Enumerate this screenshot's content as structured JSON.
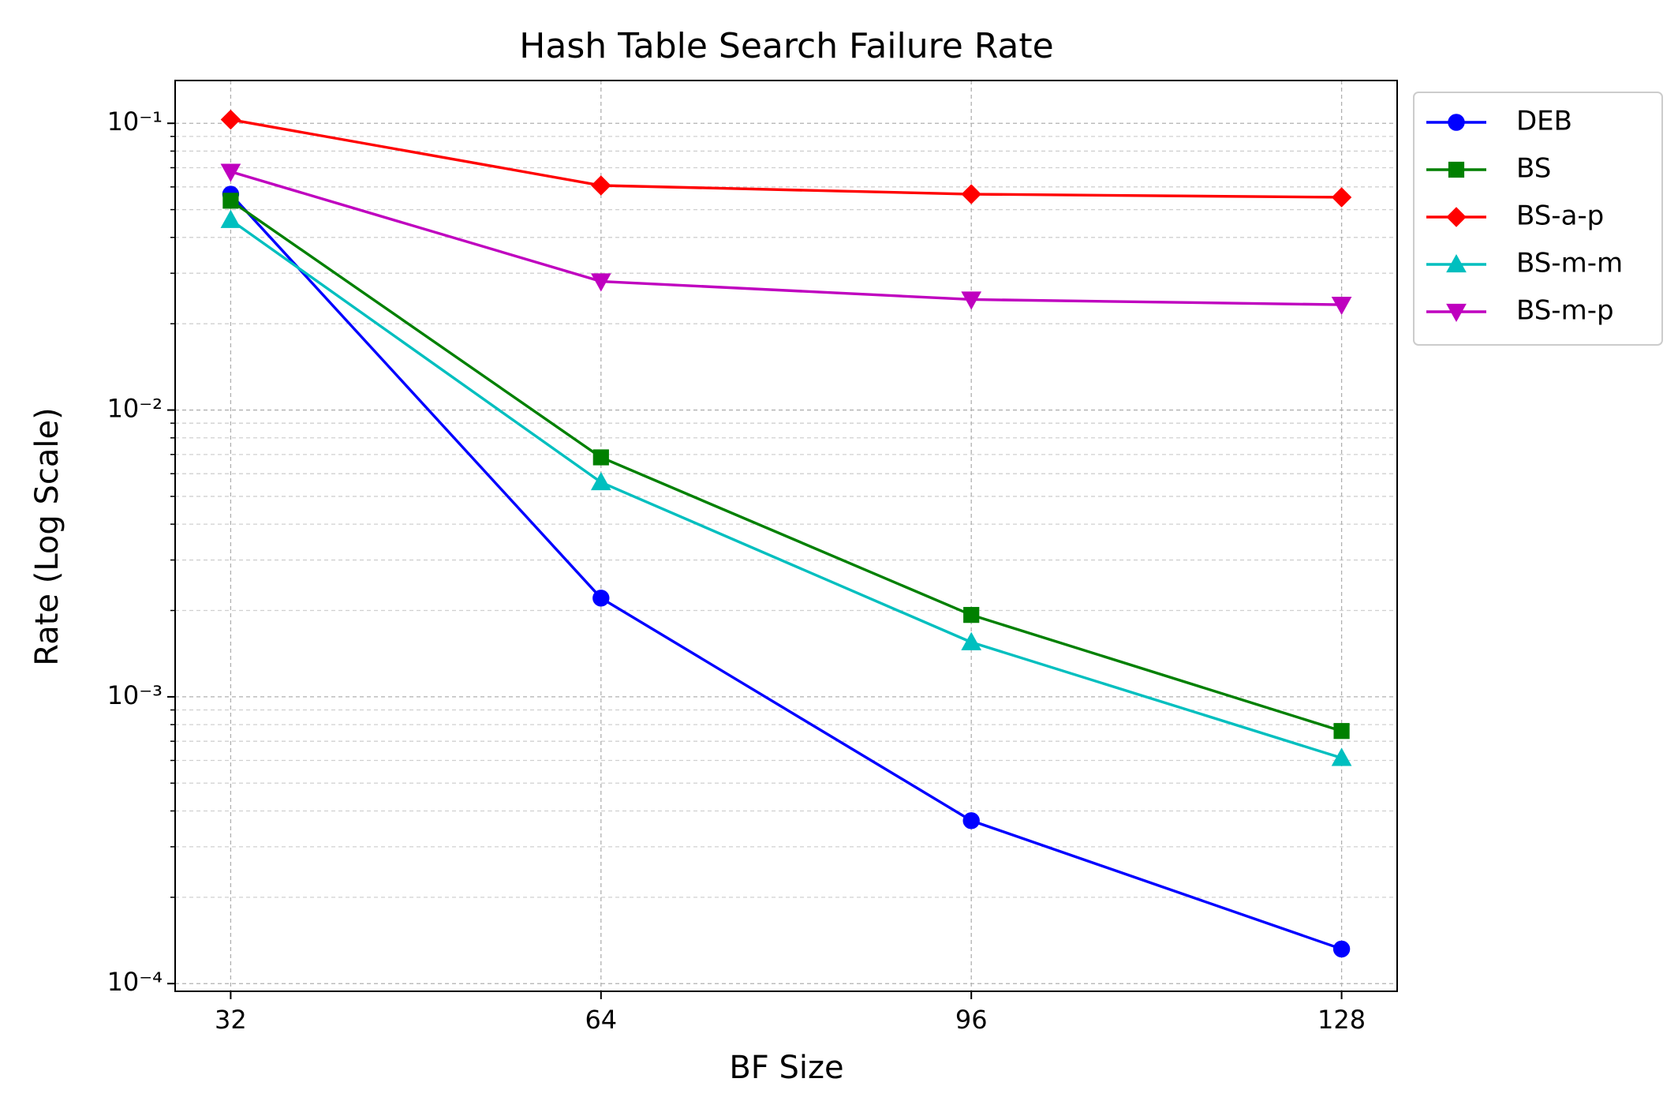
{
  "chart_data": {
    "type": "line",
    "title": "Hash Table Search Failure Rate",
    "x_label": "BF Size",
    "y_label": "Rate (Log Scale)",
    "x": [
      32,
      64,
      96,
      128
    ],
    "xlim": [
      27.2,
      132.8
    ],
    "xticks": [
      32,
      64,
      96,
      128
    ],
    "ylim": [
      9.4e-05,
      0.141
    ],
    "yscale": "log",
    "yticks": [
      {
        "value": 0.1,
        "label": "10⁻¹"
      },
      {
        "value": 0.01,
        "label": "10⁻²"
      },
      {
        "value": 0.001,
        "label": "10⁻³"
      },
      {
        "value": 0.0001,
        "label": "10⁻⁴"
      }
    ],
    "yminor": [
      0.0002,
      0.0003,
      0.0004,
      0.0005,
      0.0006,
      0.0007,
      0.0008,
      0.0009,
      0.002,
      0.003,
      0.004,
      0.005,
      0.006,
      0.007,
      0.008,
      0.009,
      0.02,
      0.03,
      0.04,
      0.05,
      0.06,
      0.07,
      0.08,
      0.09
    ],
    "grid": true,
    "legend": "outside-right",
    "series": [
      {
        "name": "DEB",
        "color": "#0000ff",
        "marker": "circle",
        "values": [
          0.0566,
          0.00221,
          0.00037,
          0.000132
        ]
      },
      {
        "name": "BS",
        "color": "#008000",
        "marker": "square",
        "values": [
          0.0537,
          0.00684,
          0.00193,
          0.00076
        ]
      },
      {
        "name": "BS-a-p",
        "color": "#ff0000",
        "marker": "diamond",
        "values": [
          0.103,
          0.0607,
          0.0566,
          0.0552
        ]
      },
      {
        "name": "BS-m-m",
        "color": "#00bfbf",
        "marker": "triangle-up",
        "values": [
          0.046,
          0.0056,
          0.00155,
          0.000612
        ]
      },
      {
        "name": "BS-m-p",
        "color": "#bf00bf",
        "marker": "triangle-down",
        "values": [
          0.0678,
          0.0281,
          0.0243,
          0.0233
        ]
      }
    ]
  }
}
